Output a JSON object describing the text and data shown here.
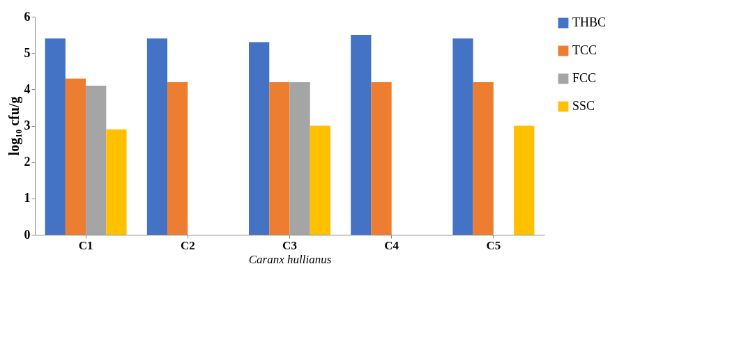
{
  "chart_data": {
    "type": "bar",
    "xlabel": "Caranx hullianus",
    "ylabel": "log₁₀ cfu/g",
    "categories": [
      "C1",
      "C2",
      "C3",
      "C4",
      "C5"
    ],
    "series": [
      {
        "name": "THBC",
        "color": "#4472c4",
        "values": [
          5.4,
          5.4,
          5.3,
          5.5,
          5.4
        ]
      },
      {
        "name": "TCC",
        "color": "#ed7d31",
        "values": [
          4.3,
          4.2,
          4.2,
          4.2,
          4.2
        ]
      },
      {
        "name": "FCC",
        "color": "#a5a5a5",
        "values": [
          4.1,
          0,
          4.2,
          0,
          0
        ]
      },
      {
        "name": "SSC",
        "color": "#ffc000",
        "values": [
          2.9,
          0,
          3.0,
          0,
          3.0
        ]
      }
    ],
    "ylim": [
      0,
      6
    ],
    "yticks": [
      0,
      1,
      2,
      3,
      4,
      5,
      6
    ],
    "grid": false,
    "legend": "right"
  }
}
